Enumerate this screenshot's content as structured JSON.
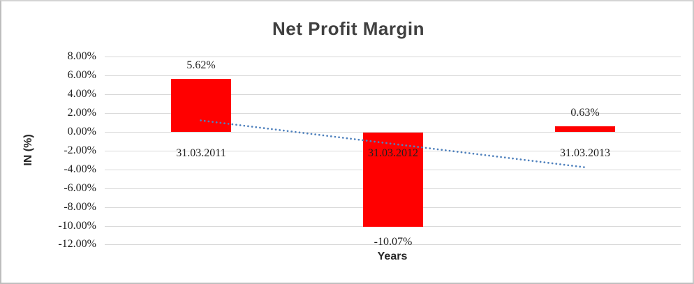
{
  "window": {
    "background": "#ffffff",
    "frame_border": "#c9c9c9"
  },
  "chart_data": {
    "type": "bar",
    "title": "Net Profit Margin",
    "xlabel": "Years",
    "ylabel": "IN (%)",
    "categories": [
      "31.03.2011",
      "31.03.2012",
      "31.03.2013"
    ],
    "values": [
      5.62,
      -10.07,
      0.63
    ],
    "data_labels": [
      "5.62%",
      "-10.07%",
      "0.63%"
    ],
    "y_tick_labels": [
      "8.00%",
      "6.00%",
      "4.00%",
      "2.00%",
      "0.00%",
      "-2.00%",
      "-4.00%",
      "-6.00%",
      "-8.00%",
      "-10.00%",
      "-12.00%"
    ],
    "y_tick_values": [
      8,
      6,
      4,
      2,
      0,
      -2,
      -4,
      -6,
      -8,
      -10,
      -12
    ],
    "ylim": [
      -12,
      8
    ],
    "grid": true,
    "legend": "none",
    "colors": {
      "bar": "#ff0000",
      "trendline": "#4f81bd",
      "gridline": "#d9d9d9",
      "title_text": "#404040",
      "label_text": "#1f1f1f"
    },
    "trendline": {
      "type": "linear",
      "style": "dotted",
      "values_pct": [
        1.22,
        -1.27,
        -3.77
      ]
    }
  }
}
